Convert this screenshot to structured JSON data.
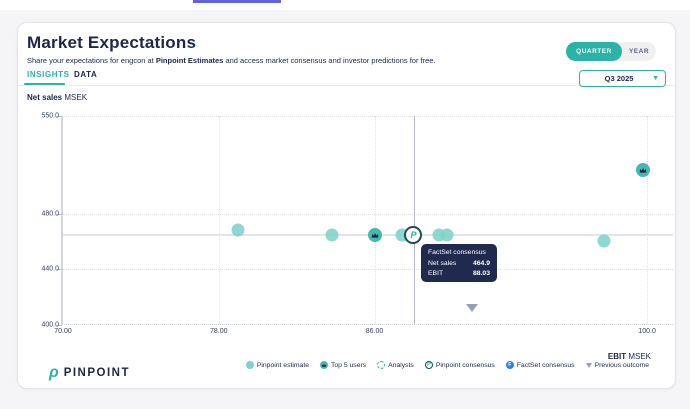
{
  "page": {
    "top_accent_color": "#6163e6"
  },
  "header": {
    "title": "Market Expectations",
    "subtitle": {
      "pre": "Share your expectations for engcon at ",
      "bold": "Pinpoint Estimates",
      "post": " and access market consensus and investor predictions for free."
    },
    "tabs": [
      {
        "label": "INSIGHTS",
        "active": true
      },
      {
        "label": "DATA",
        "active": false
      }
    ],
    "period_toggle": {
      "options": [
        "QUARTER",
        "YEAR"
      ],
      "selected": "QUARTER"
    },
    "period_dropdown": {
      "value": "Q3 2025"
    }
  },
  "axis_titles": {
    "y_bold": "Net sales",
    "y_unit": " MSEK",
    "x_bold": "EBIT",
    "x_unit": " MSEK"
  },
  "chart_data": {
    "type": "scatter",
    "title": "Net sales vs EBIT market expectations, Q3 2025",
    "xlabel": "EBIT MSEK",
    "ylabel": "Net sales MSEK",
    "xlim": [
      70,
      101.4
    ],
    "ylim": [
      400,
      550
    ],
    "grid": true,
    "legend_position": "bottom",
    "x_ticks": [
      {
        "value": 70,
        "label": "70.00"
      },
      {
        "value": 78,
        "label": "78.00"
      },
      {
        "value": 86,
        "label": "86.00"
      },
      {
        "value": 100,
        "label": "100.0"
      }
    ],
    "y_ticks": [
      {
        "value": 550,
        "label": "550.0"
      },
      {
        "value": 480,
        "label": "480.0"
      },
      {
        "value": 440,
        "label": "440.0"
      },
      {
        "value": 400,
        "label": "400.0"
      }
    ],
    "series": [
      {
        "name": "Pinpoint estimate",
        "marker": "dot",
        "points": [
          {
            "x": 79.0,
            "y": 468.5
          },
          {
            "x": 83.8,
            "y": 464.6
          },
          {
            "x": 87.4,
            "y": 464.9
          },
          {
            "x": 89.3,
            "y": 464.9
          },
          {
            "x": 89.7,
            "y": 464.9
          },
          {
            "x": 97.8,
            "y": 460.3
          }
        ]
      },
      {
        "name": "Top 5 users",
        "marker": "crown",
        "points": [
          {
            "x": 86.0,
            "y": 464.9
          },
          {
            "x": 99.8,
            "y": 511.0
          }
        ]
      },
      {
        "name": "FactSet consensus",
        "marker": "f-dot",
        "points": [
          {
            "x": 88.03,
            "y": 464.9
          }
        ]
      },
      {
        "name": "Pinpoint consensus",
        "marker": "p-ring",
        "points": [
          {
            "x": 88.0,
            "y": 464.9
          }
        ]
      },
      {
        "name": "Previous outcome",
        "marker": "triangle-down",
        "points": [
          {
            "x": 91.0
          }
        ]
      }
    ],
    "crosshair": {
      "x": 88.03,
      "y": 464.9
    }
  },
  "tooltip": {
    "title": "FactSet consensus",
    "rows": [
      {
        "label": "Net sales",
        "value": "464.9"
      },
      {
        "label": "EBIT",
        "value": "88.03"
      }
    ]
  },
  "legend": {
    "items": [
      {
        "label": "Pinpoint estimate",
        "icon": "estimate-dot-icon",
        "letter": ""
      },
      {
        "label": "Top 5 users",
        "icon": "crown-icon",
        "letter": ""
      },
      {
        "label": "Analysts",
        "icon": "analysts-dashed-circle-icon",
        "letter": ""
      },
      {
        "label": "Pinpoint consensus",
        "icon": "pinpoint-p-icon",
        "letter": "P"
      },
      {
        "label": "FactSet consensus",
        "icon": "factset-f-icon",
        "letter": "F"
      },
      {
        "label": "Previous outcome",
        "icon": "triangle-down-icon",
        "letter": ""
      }
    ]
  },
  "branding": {
    "wordmark": "PINPOINT",
    "logo_icon": "pinpoint-logo-icon"
  },
  "colors": {
    "accent_teal": "#2ab3a6",
    "estimate_teal": "#7fd3ca",
    "crown_teal": "#46b9ae",
    "navy": "#1e2749",
    "factset_blue": "#2f7ef0",
    "tooltip_bg": "#202a4e",
    "previous_outcome_gray": "#9aa0b4",
    "top_accent": "#6163e6"
  }
}
